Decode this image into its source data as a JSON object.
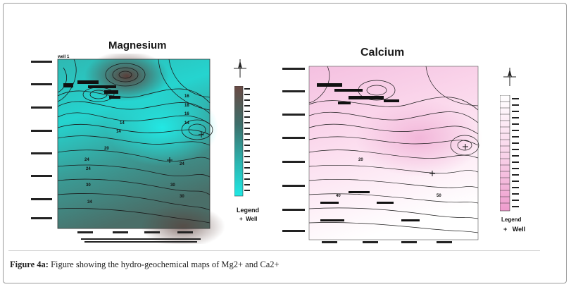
{
  "figure": {
    "caption_label": "Figure 4a:",
    "caption_text": " Figure showing the hydro-geochemical maps of Mg2+ and Ca2+"
  },
  "magnesium_map": {
    "title": "Magnesium",
    "legend_title": "Legend",
    "legend_well": "Well",
    "well_label": "well 1",
    "contour_labels": [
      "14",
      "14",
      "20",
      "24",
      "24",
      "24",
      "30",
      "30",
      "34",
      "30",
      "16",
      "18",
      "16",
      "14"
    ],
    "colors": {
      "low": "#22e0dc",
      "mid": "#3d8f8a",
      "high": "#5a3f3a"
    }
  },
  "calcium_map": {
    "title": "Calcium",
    "legend_title": "Legend",
    "legend_well": "Well",
    "contour_labels": [
      "20",
      "40",
      "50"
    ],
    "colors": {
      "low": "#f7c8e6",
      "mid": "#fde6f3",
      "high": "#ffffff"
    }
  }
}
